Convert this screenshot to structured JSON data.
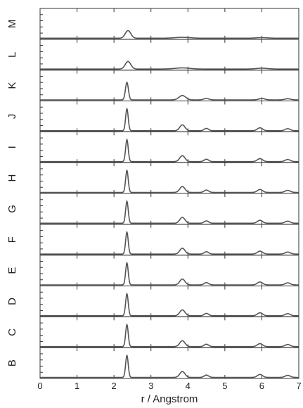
{
  "chart_data": {
    "type": "line",
    "xlabel": "r / Angstrom",
    "ylabel": "",
    "xlim": [
      0,
      7
    ],
    "xticks": [
      "0",
      "1",
      "2",
      "3",
      "4",
      "5",
      "6",
      "7"
    ],
    "grid": false,
    "legend": "none",
    "line_color": "#555555",
    "series": [
      {
        "name": "M",
        "peaks": [
          {
            "r": 2.38,
            "h": 0.26,
            "w": 0.075
          },
          {
            "r": 3.85,
            "h": 0.03,
            "w": 0.2
          },
          {
            "r": 6.0,
            "h": 0.02,
            "w": 0.15
          }
        ]
      },
      {
        "name": "L",
        "peaks": [
          {
            "r": 2.38,
            "h": 0.26,
            "w": 0.075
          },
          {
            "r": 3.85,
            "h": 0.04,
            "w": 0.2
          },
          {
            "r": 6.0,
            "h": 0.03,
            "w": 0.15
          }
        ]
      },
      {
        "name": "K",
        "peaks": [
          {
            "r": 2.35,
            "h": 0.6,
            "w": 0.04
          },
          {
            "r": 3.85,
            "h": 0.15,
            "w": 0.09
          },
          {
            "r": 4.5,
            "h": 0.05,
            "w": 0.07
          },
          {
            "r": 6.0,
            "h": 0.05,
            "w": 0.08
          },
          {
            "r": 6.7,
            "h": 0.04,
            "w": 0.08
          }
        ]
      },
      {
        "name": "J",
        "peaks": [
          {
            "r": 2.35,
            "h": 0.75,
            "w": 0.035
          },
          {
            "r": 3.85,
            "h": 0.2,
            "w": 0.07
          },
          {
            "r": 4.5,
            "h": 0.08,
            "w": 0.06
          },
          {
            "r": 5.95,
            "h": 0.1,
            "w": 0.07
          },
          {
            "r": 6.7,
            "h": 0.07,
            "w": 0.07
          }
        ]
      },
      {
        "name": "I",
        "peaks": [
          {
            "r": 2.35,
            "h": 0.75,
            "w": 0.035
          },
          {
            "r": 3.85,
            "h": 0.2,
            "w": 0.07
          },
          {
            "r": 4.5,
            "h": 0.08,
            "w": 0.06
          },
          {
            "r": 5.95,
            "h": 0.1,
            "w": 0.07
          },
          {
            "r": 6.7,
            "h": 0.07,
            "w": 0.07
          }
        ]
      },
      {
        "name": "H",
        "peaks": [
          {
            "r": 2.35,
            "h": 0.75,
            "w": 0.035
          },
          {
            "r": 3.85,
            "h": 0.2,
            "w": 0.07
          },
          {
            "r": 4.5,
            "h": 0.08,
            "w": 0.06
          },
          {
            "r": 5.95,
            "h": 0.1,
            "w": 0.07
          },
          {
            "r": 6.7,
            "h": 0.07,
            "w": 0.07
          }
        ]
      },
      {
        "name": "G",
        "peaks": [
          {
            "r": 2.35,
            "h": 0.75,
            "w": 0.035
          },
          {
            "r": 3.85,
            "h": 0.2,
            "w": 0.07
          },
          {
            "r": 4.5,
            "h": 0.08,
            "w": 0.06
          },
          {
            "r": 5.95,
            "h": 0.1,
            "w": 0.07
          },
          {
            "r": 6.7,
            "h": 0.07,
            "w": 0.07
          }
        ]
      },
      {
        "name": "F",
        "peaks": [
          {
            "r": 2.35,
            "h": 0.75,
            "w": 0.035
          },
          {
            "r": 3.85,
            "h": 0.2,
            "w": 0.07
          },
          {
            "r": 4.5,
            "h": 0.08,
            "w": 0.06
          },
          {
            "r": 5.95,
            "h": 0.1,
            "w": 0.07
          },
          {
            "r": 6.7,
            "h": 0.07,
            "w": 0.07
          }
        ]
      },
      {
        "name": "E",
        "peaks": [
          {
            "r": 2.35,
            "h": 0.75,
            "w": 0.035
          },
          {
            "r": 3.85,
            "h": 0.2,
            "w": 0.07
          },
          {
            "r": 4.5,
            "h": 0.08,
            "w": 0.06
          },
          {
            "r": 5.95,
            "h": 0.1,
            "w": 0.07
          },
          {
            "r": 6.7,
            "h": 0.07,
            "w": 0.07
          }
        ]
      },
      {
        "name": "D",
        "peaks": [
          {
            "r": 2.35,
            "h": 0.75,
            "w": 0.035
          },
          {
            "r": 3.85,
            "h": 0.2,
            "w": 0.07
          },
          {
            "r": 4.5,
            "h": 0.08,
            "w": 0.06
          },
          {
            "r": 5.95,
            "h": 0.1,
            "w": 0.07
          },
          {
            "r": 6.7,
            "h": 0.07,
            "w": 0.07
          }
        ]
      },
      {
        "name": "C",
        "peaks": [
          {
            "r": 2.35,
            "h": 0.75,
            "w": 0.035
          },
          {
            "r": 3.85,
            "h": 0.2,
            "w": 0.07
          },
          {
            "r": 4.5,
            "h": 0.08,
            "w": 0.06
          },
          {
            "r": 5.95,
            "h": 0.1,
            "w": 0.07
          },
          {
            "r": 6.7,
            "h": 0.07,
            "w": 0.07
          }
        ]
      },
      {
        "name": "B",
        "peaks": [
          {
            "r": 2.35,
            "h": 0.75,
            "w": 0.035
          },
          {
            "r": 3.85,
            "h": 0.2,
            "w": 0.07
          },
          {
            "r": 4.5,
            "h": 0.08,
            "w": 0.06
          },
          {
            "r": 5.95,
            "h": 0.1,
            "w": 0.07
          },
          {
            "r": 6.7,
            "h": 0.07,
            "w": 0.07
          }
        ]
      }
    ]
  }
}
